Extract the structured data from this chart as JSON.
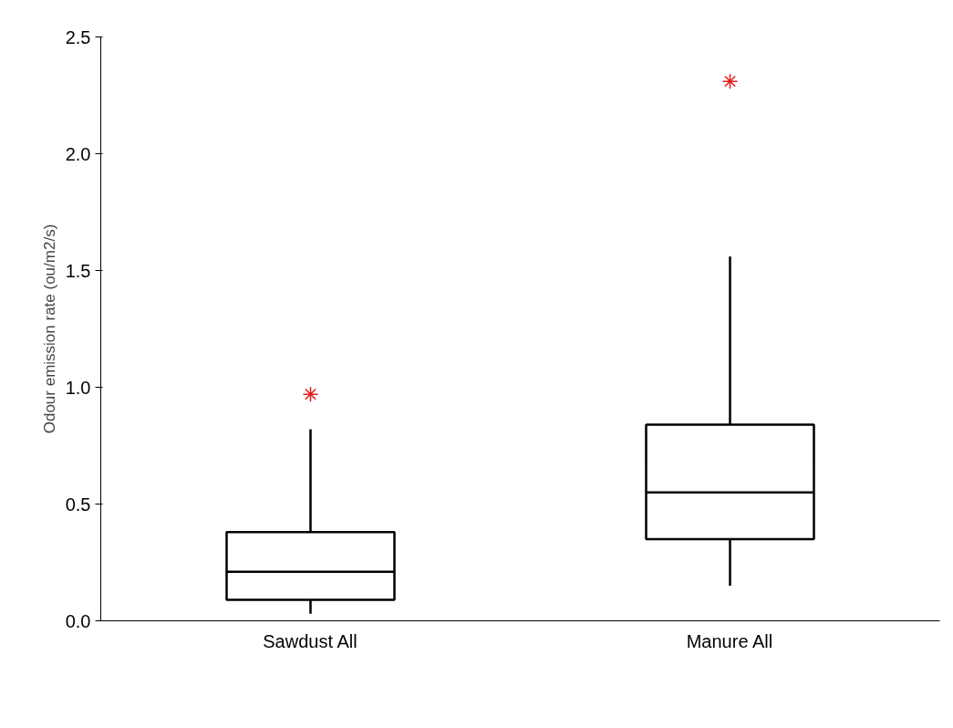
{
  "chart_data": {
    "type": "box",
    "ylabel": "Odour emission rate (ou/m2/s)",
    "categories": [
      "Sawdust All",
      "Manure All"
    ],
    "boxes": [
      {
        "low": 0.03,
        "q1": 0.09,
        "median": 0.21,
        "q3": 0.38,
        "high": 0.82,
        "outliers": [
          0.97
        ]
      },
      {
        "low": 0.15,
        "q1": 0.35,
        "median": 0.55,
        "q3": 0.84,
        "high": 1.56,
        "outliers": [
          2.31
        ]
      }
    ],
    "color": "#000000",
    "ylim": [
      0,
      2.5
    ],
    "yticks": [
      {
        "value": 0,
        "label": "0.0"
      },
      {
        "value": 0.5,
        "label": "0.5"
      },
      {
        "value": 1,
        "label": "1.0"
      },
      {
        "value": 1.5,
        "label": "1.5"
      },
      {
        "value": 2,
        "label": "2.0"
      },
      {
        "value": 2.5,
        "label": "2.5"
      }
    ],
    "grid": false
  }
}
